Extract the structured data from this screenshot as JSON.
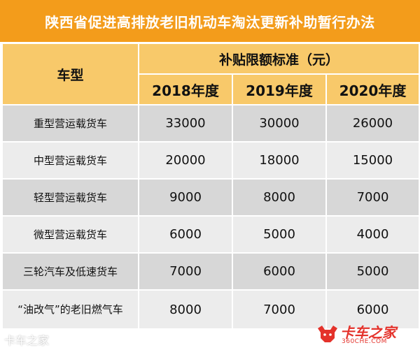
{
  "title": "陕西省促进高排放老旧机动车淘汰更新补助暂行办法",
  "table": {
    "type_header": "车型",
    "standard_header": "补贴限额标准（元）",
    "years": [
      "2018年度",
      "2019年度",
      "2020年度"
    ],
    "rows": [
      {
        "type": "重型营运载货车",
        "values": [
          "33000",
          "30000",
          "26000"
        ]
      },
      {
        "type": "中型营运载货车",
        "values": [
          "20000",
          "18000",
          "15000"
        ]
      },
      {
        "type": "轻型营运载货车",
        "values": [
          "9000",
          "8000",
          "7000"
        ]
      },
      {
        "type": "微型营运载货车",
        "values": [
          "6000",
          "5000",
          "4000"
        ]
      },
      {
        "type": "三轮汽车及低速货车",
        "values": [
          "7000",
          "6000",
          "5000"
        ]
      },
      {
        "type": "“油改气”的老旧燃气车",
        "values": [
          "8000",
          "7000",
          "6000"
        ]
      }
    ]
  },
  "watermark": "卡车之家",
  "logo": {
    "name": "卡车之家",
    "domain": "360CHE.COM",
    "icon": "bull-icon",
    "color": "#e4322b"
  },
  "colors": {
    "title_bg": "#f39c1b",
    "header_bg": "#f8c96a",
    "row_dark": "#d7d7d7",
    "row_light": "#ececec"
  }
}
